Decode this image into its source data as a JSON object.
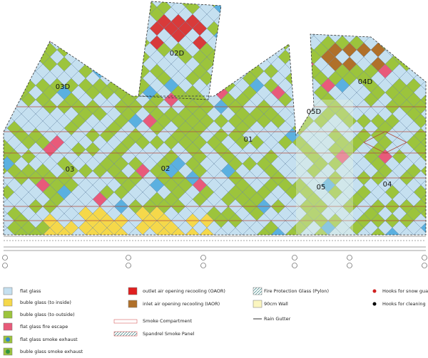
{
  "zones": [
    {
      "label": "03D"
    },
    {
      "label": "02D"
    },
    {
      "label": "04D"
    },
    {
      "label": "05D"
    },
    {
      "label": "01"
    },
    {
      "label": "03"
    },
    {
      "label": "02"
    },
    {
      "label": "05"
    },
    {
      "label": "04"
    }
  ],
  "legend": [
    {
      "label": "flat glass"
    },
    {
      "label": "buble glass (to inside)"
    },
    {
      "label": "buble glass (to outside)"
    },
    {
      "label": "flat glass fire escape"
    },
    {
      "label": "flat glass smoke exhaust"
    },
    {
      "label": "buble glass smoke exhaust"
    },
    {
      "label": "outlet air opening recooling (OAOR)"
    },
    {
      "label": "inlet air opening recooling (IAOR)"
    },
    {
      "label": "Smoke Compartment"
    },
    {
      "label": "Spandrel Smoke Panel"
    },
    {
      "label": "Fire Protection Glass (Pylon)"
    },
    {
      "label": "90cm Wall"
    },
    {
      "label": "Rain Gutter"
    },
    {
      "label": "Hooks for snow guards"
    },
    {
      "label": "Hooks for cleaning"
    }
  ]
}
